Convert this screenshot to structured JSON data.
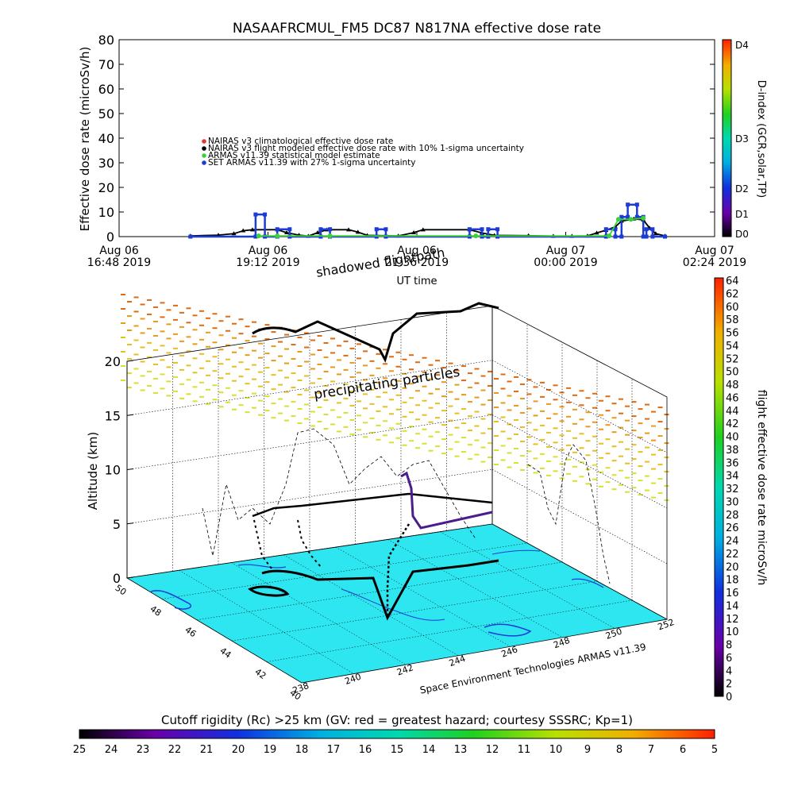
{
  "chart_data": [
    {
      "type": "line",
      "title": "NASAAFRCMUL_FM5 DC87 N817NA effective dose rate",
      "ylabel": "Effective dose rate (microSv/h)",
      "xlabel": "UT time",
      "ylim": [
        0,
        80
      ],
      "yticks": [
        "0",
        "10",
        "20",
        "30",
        "40",
        "50",
        "60",
        "70",
        "80"
      ],
      "xticks": [
        {
          "l1": "Aug 06",
          "l2": "16:48 2019"
        },
        {
          "l1": "Aug 06",
          "l2": "19:12 2019"
        },
        {
          "l1": "Aug 06",
          "l2": "21:36 2019"
        },
        {
          "l1": "Aug 07",
          "l2": "00:00 2019"
        },
        {
          "l1": "Aug 07",
          "l2": "02:24 2019"
        }
      ],
      "legend": [
        {
          "label": "NAIRAS v3 climatological effective dose rate",
          "color": "#e0382a",
          "marker": "diamond"
        },
        {
          "label": "NAIRAS v3 flight modeled effective dose rate with 10% 1-sigma uncertainty",
          "color": "#000000",
          "marker": "triangle"
        },
        {
          "label": "ARMAS v11.39 statistical model estimate",
          "color": "#3ad23a",
          "marker": "star"
        },
        {
          "label": "SET ARMAS v11.39 with 27% 1-sigma uncertainty",
          "color": "#1c3cd6",
          "marker": "square"
        }
      ],
      "x_hours": [
        0,
        2.4,
        4.8,
        7.2,
        9.6
      ],
      "series": [
        {
          "name": "NAIRAS v3 flight modeled effective dose rate with 10% 1-sigma uncertainty",
          "color": "#000000",
          "points": [
            [
              1.15,
              0.3
            ],
            [
              1.6,
              0.6
            ],
            [
              1.85,
              1.2
            ],
            [
              2.0,
              2.4
            ],
            [
              2.15,
              2.8
            ],
            [
              2.55,
              2.8
            ],
            [
              2.7,
              1.6
            ],
            [
              2.9,
              0.6
            ],
            [
              3.05,
              0.2
            ],
            [
              3.2,
              1.6
            ],
            [
              3.35,
              2.8
            ],
            [
              3.7,
              2.8
            ],
            [
              3.85,
              1.8
            ],
            [
              4.0,
              0.5
            ],
            [
              4.5,
              0.3
            ],
            [
              4.75,
              1.6
            ],
            [
              4.9,
              2.8
            ],
            [
              5.65,
              2.8
            ],
            [
              5.85,
              1.5
            ],
            [
              6.05,
              0.5
            ],
            [
              6.6,
              0.4
            ],
            [
              7.0,
              0.2
            ],
            [
              7.3,
              0.2
            ],
            [
              7.55,
              0.3
            ],
            [
              7.7,
              1.5
            ],
            [
              7.85,
              2.6
            ],
            [
              8.0,
              4.0
            ],
            [
              8.1,
              6.3
            ],
            [
              8.3,
              7.2
            ],
            [
              8.45,
              6.8
            ],
            [
              8.55,
              3.5
            ],
            [
              8.65,
              1.2
            ],
            [
              8.8,
              0.3
            ]
          ]
        },
        {
          "name": "SET ARMAS v11.39 with 27% 1-sigma uncertainty",
          "color": "#1c3cd6",
          "points": [
            [
              1.15,
              0
            ],
            [
              2.2,
              0
            ],
            [
              2.2,
              9
            ],
            [
              2.35,
              9
            ],
            [
              2.35,
              0
            ],
            [
              2.55,
              0
            ],
            [
              2.55,
              3
            ],
            [
              2.75,
              3
            ],
            [
              2.75,
              0
            ],
            [
              3.25,
              0
            ],
            [
              3.25,
              3
            ],
            [
              3.4,
              3
            ],
            [
              3.4,
              0
            ],
            [
              4.15,
              0
            ],
            [
              4.15,
              3
            ],
            [
              4.3,
              3
            ],
            [
              4.3,
              0
            ],
            [
              5.65,
              0
            ],
            [
              5.65,
              3
            ],
            [
              5.85,
              3
            ],
            [
              5.85,
              0
            ],
            [
              5.95,
              0
            ],
            [
              5.95,
              3
            ],
            [
              6.1,
              3
            ],
            [
              6.1,
              0
            ],
            [
              7.85,
              0
            ],
            [
              7.85,
              3
            ],
            [
              8.0,
              3
            ],
            [
              8.0,
              0
            ],
            [
              8.1,
              0
            ],
            [
              8.1,
              8
            ],
            [
              8.2,
              8
            ],
            [
              8.2,
              13
            ],
            [
              8.35,
              13
            ],
            [
              8.35,
              8
            ],
            [
              8.45,
              8
            ],
            [
              8.45,
              0
            ],
            [
              8.5,
              0
            ],
            [
              8.5,
              3
            ],
            [
              8.6,
              3
            ],
            [
              8.6,
              0
            ],
            [
              8.8,
              0
            ]
          ]
        },
        {
          "name": "ARMAS v11.39 statistical model estimate",
          "color": "#3ad23a",
          "points": [
            [
              2.25,
              0.3
            ],
            [
              2.55,
              0.3
            ],
            [
              3.4,
              0.3
            ],
            [
              5.75,
              0.3
            ],
            [
              7.9,
              0.3
            ],
            [
              8.05,
              7
            ],
            [
              8.25,
              7
            ],
            [
              8.45,
              7.5
            ]
          ]
        }
      ],
      "colorbar": {
        "label_top": "D4",
        "labels": [
          "D4",
          "D3",
          "D2",
          "D1",
          "D0"
        ],
        "title": "D-index (GCR,solar,TP)"
      }
    },
    {
      "type": "scatter",
      "subtype": "3d-flight-track",
      "zlabel": "Altitude (km)",
      "zticks": [
        "0",
        "5",
        "10",
        "15",
        "20"
      ],
      "lat_ticks": [
        "40",
        "42",
        "44",
        "46",
        "48",
        "50"
      ],
      "lon_ticks": [
        "238",
        "240",
        "242",
        "244",
        "246",
        "248",
        "250",
        "252"
      ],
      "annotations": [
        "shadowed flightpath",
        "precipitating particles"
      ],
      "credit": "Space Environment Technologies ARMAS v11.39",
      "surface_color": "#2ee6f0",
      "dose_colorbar": {
        "title": "flight effective dose rate microSv/h",
        "ticks": [
          "64",
          "62",
          "60",
          "58",
          "56",
          "54",
          "52",
          "50",
          "48",
          "46",
          "44",
          "42",
          "40",
          "38",
          "36",
          "34",
          "32",
          "30",
          "28",
          "26",
          "24",
          "22",
          "20",
          "18",
          "16",
          "14",
          "12",
          "10",
          "8",
          "6",
          "4",
          "2",
          "0"
        ]
      },
      "cutoff_colorbar": {
        "title": "Cutoff rigidity (Rc) >25 km (GV: red = greatest hazard; courtesy SSSRC; Kp=1)",
        "ticks": [
          "25",
          "24",
          "23",
          "22",
          "21",
          "20",
          "19",
          "18",
          "17",
          "16",
          "15",
          "14",
          "13",
          "12",
          "11",
          "10",
          "9",
          "8",
          "7",
          "6",
          "5"
        ]
      }
    }
  ]
}
